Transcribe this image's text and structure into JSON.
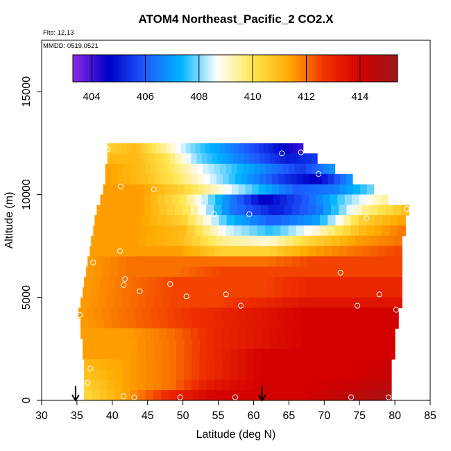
{
  "chart_data": {
    "type": "heatmap",
    "title": "ATOM4 Northeast_Pacific_2 CO2.X",
    "notes": [
      "Flts: 12,13",
      "MMDD: 0519,0521"
    ],
    "xlabel": "Latitude (deg N)",
    "ylabel": "Altitude (m)",
    "xlim": [
      30,
      85
    ],
    "ylim": [
      0,
      17500
    ],
    "xticks": [
      30,
      35,
      40,
      45,
      50,
      55,
      60,
      65,
      70,
      75,
      80,
      85
    ],
    "yticks": [
      0,
      5000,
      10000,
      15000
    ],
    "grid": false,
    "colorbar": {
      "placement": "top, inside plot",
      "range": [
        403.3,
        415.4
      ],
      "tick_labels": [
        "404",
        "406",
        "408",
        "410",
        "412",
        "414"
      ],
      "tick_values": [
        404,
        406,
        408,
        410,
        412,
        414
      ],
      "colors": [
        "#8a2be2",
        "#0000c8",
        "#1e5aff",
        "#00b4ff",
        "#ffffff",
        "#ffe650",
        "#ffaa00",
        "#f03000",
        "#d20000",
        "#9b1a1a"
      ]
    },
    "field_layers": [
      {
        "altitude_range": [
          12000,
          12500
        ],
        "lat_range": [
          39.3,
          67.0
        ],
        "values": [
          410.5,
          411.0,
          409.5,
          408.0,
          407.0,
          406.0,
          405.0,
          404.0
        ]
      },
      {
        "altitude_range": [
          11500,
          12000
        ],
        "lat_range": [
          39.3,
          69.0
        ],
        "values": [
          411.0,
          411.0,
          410.0,
          408.0,
          407.0,
          406.0,
          405.0,
          405.5
        ]
      },
      {
        "altitude_range": [
          11000,
          11500
        ],
        "lat_range": [
          39.0,
          71.5
        ],
        "values": [
          411.5,
          411.0,
          410.0,
          408.5,
          407.5,
          406.5,
          405.5,
          407.0
        ]
      },
      {
        "altitude_range": [
          10500,
          11000
        ],
        "lat_range": [
          39.0,
          74.0
        ],
        "values": [
          411.5,
          411.0,
          410.0,
          408.5,
          407.0,
          405.5,
          404.5,
          407.0
        ]
      },
      {
        "altitude_range": [
          10000,
          10500
        ],
        "lat_range": [
          38.7,
          77.0
        ],
        "values": [
          411.5,
          411.5,
          410.5,
          409.0,
          407.5,
          406.0,
          406.5,
          408.0
        ]
      },
      {
        "altitude_range": [
          9500,
          10000
        ],
        "lat_range": [
          38.3,
          79.0
        ],
        "values": [
          411.5,
          411.5,
          410.0,
          407.0,
          404.5,
          406.0,
          408.0,
          409.5
        ]
      },
      {
        "altitude_range": [
          9000,
          9500
        ],
        "lat_range": [
          37.8,
          82.0
        ],
        "values": [
          411.5,
          411.5,
          410.0,
          406.5,
          405.0,
          406.5,
          409.5,
          411.0
        ]
      },
      {
        "altitude_range": [
          8500,
          9000
        ],
        "lat_range": [
          37.5,
          81.5
        ],
        "values": [
          411.5,
          411.5,
          410.5,
          407.5,
          406.0,
          407.0,
          410.5,
          411.5
        ]
      },
      {
        "altitude_range": [
          8000,
          8500
        ],
        "lat_range": [
          37.3,
          81.5
        ],
        "values": [
          411.5,
          411.5,
          411.0,
          408.5,
          407.5,
          409.0,
          411.0,
          412.0
        ]
      },
      {
        "altitude_range": [
          7500,
          8000
        ],
        "lat_range": [
          37.0,
          81.0
        ],
        "values": [
          411.5,
          411.5,
          411.0,
          409.5,
          409.0,
          410.5,
          411.5,
          412.0
        ]
      },
      {
        "altitude_range": [
          7000,
          7500
        ],
        "lat_range": [
          36.8,
          81.0
        ],
        "values": [
          411.5,
          411.5,
          411.5,
          410.5,
          410.5,
          411.5,
          412.0,
          412.5
        ]
      },
      {
        "altitude_range": [
          6500,
          7000
        ],
        "lat_range": [
          36.5,
          81.0
        ],
        "values": [
          411.5,
          412.0,
          412.0,
          412.0,
          412.0,
          412.5,
          412.5,
          412.5
        ]
      },
      {
        "altitude_range": [
          6000,
          6500
        ],
        "lat_range": [
          36.3,
          81.0
        ],
        "values": [
          411.5,
          412.0,
          412.0,
          412.5,
          412.5,
          412.5,
          412.5,
          412.5
        ]
      },
      {
        "altitude_range": [
          5500,
          6000
        ],
        "lat_range": [
          36.0,
          81.0
        ],
        "values": [
          411.5,
          412.0,
          412.5,
          412.5,
          412.5,
          413.0,
          413.0,
          413.0
        ]
      },
      {
        "altitude_range": [
          5000,
          5500
        ],
        "lat_range": [
          35.8,
          81.0
        ],
        "values": [
          411.5,
          412.0,
          412.5,
          412.5,
          412.5,
          413.0,
          413.0,
          413.0
        ]
      },
      {
        "altitude_range": [
          4500,
          5000
        ],
        "lat_range": [
          35.5,
          81.0
        ],
        "values": [
          411.5,
          412.0,
          412.5,
          412.5,
          413.0,
          413.5,
          413.5,
          413.5
        ]
      },
      {
        "altitude_range": [
          4000,
          4500
        ],
        "lat_range": [
          35.2,
          80.5
        ],
        "values": [
          411.5,
          412.0,
          412.5,
          413.0,
          413.5,
          414.0,
          414.0,
          414.0
        ]
      },
      {
        "altitude_range": [
          3500,
          4000
        ],
        "lat_range": [
          35.5,
          80.5
        ],
        "values": [
          411.5,
          412.0,
          412.5,
          413.0,
          413.5,
          414.0,
          414.0,
          414.0
        ]
      },
      {
        "altitude_range": [
          3000,
          3500
        ],
        "lat_range": [
          35.5,
          80.0
        ],
        "values": [
          411.5,
          411.5,
          412.0,
          413.0,
          413.5,
          414.0,
          414.0,
          414.0
        ]
      },
      {
        "altitude_range": [
          2500,
          3000
        ],
        "lat_range": [
          35.8,
          80.0
        ],
        "values": [
          411.5,
          411.5,
          412.0,
          413.0,
          413.5,
          414.0,
          414.0,
          414.0
        ]
      },
      {
        "altitude_range": [
          2000,
          2500
        ],
        "lat_range": [
          35.8,
          80.0
        ],
        "values": [
          411.5,
          411.5,
          412.0,
          413.0,
          414.0,
          414.0,
          414.0,
          414.0
        ]
      },
      {
        "altitude_range": [
          1500,
          2000
        ],
        "lat_range": [
          36.0,
          79.5
        ],
        "values": [
          411.0,
          411.5,
          412.0,
          413.0,
          414.0,
          414.0,
          414.0,
          414.2
        ]
      },
      {
        "altitude_range": [
          1000,
          1500
        ],
        "lat_range": [
          36.0,
          79.5
        ],
        "values": [
          410.8,
          411.5,
          412.0,
          413.0,
          414.0,
          414.0,
          414.0,
          414.3
        ]
      },
      {
        "altitude_range": [
          500,
          1000
        ],
        "lat_range": [
          36.0,
          79.5
        ],
        "values": [
          410.5,
          411.5,
          412.0,
          413.5,
          414.0,
          414.0,
          414.2,
          414.6
        ]
      },
      {
        "altitude_range": [
          0,
          500
        ],
        "lat_range": [
          36.0,
          79.5
        ],
        "values": [
          410.3,
          411.5,
          413.0,
          414.0,
          414.0,
          414.0,
          414.5,
          415.0
        ]
      }
    ],
    "points": [
      {
        "x": 39.3,
        "y": 12200
      },
      {
        "x": 64.0,
        "y": 12000
      },
      {
        "x": 66.7,
        "y": 12050
      },
      {
        "x": 69.2,
        "y": 11000
      },
      {
        "x": 41.2,
        "y": 10400
      },
      {
        "x": 45.9,
        "y": 10250
      },
      {
        "x": 52.4,
        "y": 9750
      },
      {
        "x": 54.4,
        "y": 9050
      },
      {
        "x": 59.4,
        "y": 9050
      },
      {
        "x": 81.7,
        "y": 9300
      },
      {
        "x": 76.0,
        "y": 8850
      },
      {
        "x": 41.1,
        "y": 7250
      },
      {
        "x": 37.3,
        "y": 6700
      },
      {
        "x": 72.3,
        "y": 6200
      },
      {
        "x": 41.8,
        "y": 5900
      },
      {
        "x": 41.6,
        "y": 5600
      },
      {
        "x": 48.2,
        "y": 5650
      },
      {
        "x": 43.9,
        "y": 5300
      },
      {
        "x": 50.5,
        "y": 5050
      },
      {
        "x": 56.1,
        "y": 5150
      },
      {
        "x": 58.2,
        "y": 4600
      },
      {
        "x": 74.7,
        "y": 4600
      },
      {
        "x": 77.8,
        "y": 5150
      },
      {
        "x": 80.2,
        "y": 4400
      },
      {
        "x": 35.4,
        "y": 4150
      },
      {
        "x": 36.9,
        "y": 1550
      },
      {
        "x": 36.5,
        "y": 850
      },
      {
        "x": 41.6,
        "y": 200
      },
      {
        "x": 43.1,
        "y": 150
      },
      {
        "x": 49.6,
        "y": 150
      },
      {
        "x": 57.4,
        "y": 150
      },
      {
        "x": 73.8,
        "y": 150
      },
      {
        "x": 79.1,
        "y": 150
      }
    ],
    "arrows": [
      34.8,
      61.2
    ]
  }
}
